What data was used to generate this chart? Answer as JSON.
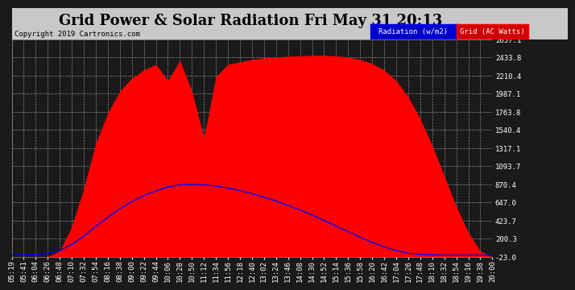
{
  "title": "Grid Power & Solar Radiation Fri May 31 20:13",
  "copyright": "Copyright 2019 Cartronics.com",
  "legend_labels": [
    "Radiation (w/m2)",
    "Grid (AC Watts)"
  ],
  "ymin": -23.0,
  "ymax": 2657.1,
  "yticks": [
    2657.1,
    2433.8,
    2210.4,
    1987.1,
    1763.8,
    1540.4,
    1317.1,
    1093.7,
    870.4,
    647.0,
    423.7,
    200.3,
    -23.0
  ],
  "bg_color": "#1a1a1a",
  "plot_bg_color": "#1a1a1a",
  "grid_color": "#888888",
  "x_labels": [
    "05:19",
    "05:41",
    "06:04",
    "06:26",
    "06:48",
    "07:10",
    "07:32",
    "07:54",
    "08:16",
    "08:38",
    "09:00",
    "09:22",
    "09:44",
    "10:06",
    "10:28",
    "10:50",
    "11:12",
    "11:34",
    "11:56",
    "12:18",
    "12:40",
    "13:02",
    "13:24",
    "13:46",
    "14:08",
    "14:30",
    "14:52",
    "15:14",
    "15:36",
    "15:58",
    "16:20",
    "16:42",
    "17:04",
    "17:26",
    "17:48",
    "18:10",
    "18:32",
    "18:54",
    "19:16",
    "19:38",
    "20:00"
  ],
  "solar_radiation_raw": [
    0,
    2,
    8,
    20,
    55,
    130,
    230,
    350,
    460,
    565,
    650,
    725,
    780,
    830,
    855,
    860,
    855,
    840,
    815,
    785,
    748,
    705,
    658,
    605,
    548,
    488,
    422,
    355,
    285,
    218,
    155,
    100,
    55,
    22,
    7,
    2,
    0,
    0,
    0,
    0,
    0
  ],
  "solar_max_raw": 860,
  "solar_display_max": 870.4,
  "grid_ac_watts": [
    -23,
    -22,
    -20,
    -18,
    50,
    350,
    820,
    1380,
    1750,
    2020,
    2180,
    2280,
    2350,
    2150,
    2400,
    2020,
    1450,
    2200,
    2350,
    2380,
    2410,
    2430,
    2440,
    2450,
    2455,
    2460,
    2460,
    2455,
    2440,
    2410,
    2360,
    2280,
    2150,
    1950,
    1680,
    1350,
    980,
    600,
    280,
    50,
    -23
  ],
  "radiation_color": "#0000ff",
  "ac_fill_color": "#ff0000",
  "title_fontsize": 13,
  "tick_fontsize": 6.5,
  "title_bg": "#c8c8c8",
  "title_text_color": "#000000",
  "copyright_color": "#000000",
  "ytick_color": "#ffffff",
  "xtick_color": "#ffffff",
  "legend_rad_bg": "#0000cc",
  "legend_grid_bg": "#cc0000",
  "legend_text_color": "#ffffff"
}
